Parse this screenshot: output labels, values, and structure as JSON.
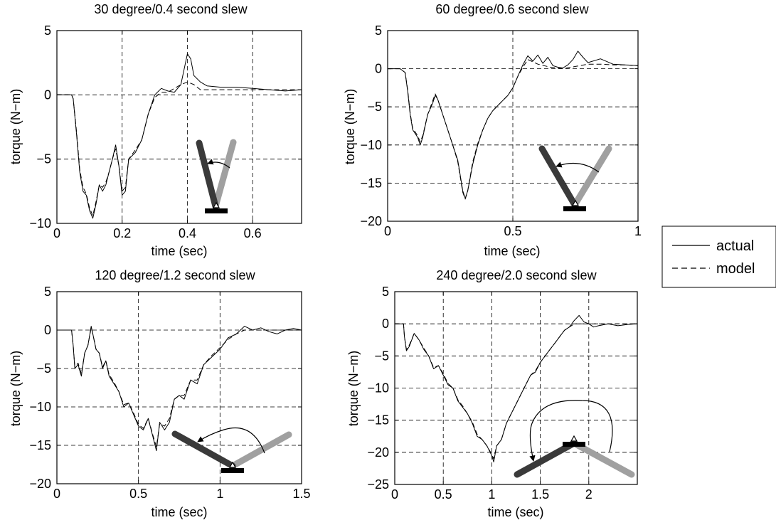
{
  "chart_data": [
    {
      "type": "line",
      "title": "30 degree/0.4 second slew",
      "xlabel": "time (sec)",
      "ylabel": "torque (N−m)",
      "xlim": [
        0,
        0.75
      ],
      "ylim": [
        -10,
        5
      ],
      "xticks": [
        0,
        0.2,
        0.4,
        0.6
      ],
      "xtick_labels": [
        "0",
        "0.2",
        "0.4",
        "0.6"
      ],
      "yticks": [
        -10,
        -5,
        0,
        5
      ],
      "ytick_labels": [
        "−10",
        "−5",
        "0",
        "5"
      ],
      "grid": true,
      "series": [
        {
          "name": "actual",
          "x": [
            0,
            0.045,
            0.05,
            0.06,
            0.07,
            0.08,
            0.09,
            0.1,
            0.11,
            0.12,
            0.13,
            0.14,
            0.15,
            0.16,
            0.17,
            0.18,
            0.19,
            0.2,
            0.21,
            0.22,
            0.24,
            0.26,
            0.28,
            0.3,
            0.32,
            0.34,
            0.36,
            0.38,
            0.39,
            0.4,
            0.41,
            0.42,
            0.44,
            0.46,
            0.5,
            0.55,
            0.6,
            0.65,
            0.7,
            0.75
          ],
          "y": [
            0,
            0,
            -0.3,
            -3,
            -6,
            -7.5,
            -7.8,
            -9,
            -9.6,
            -8.5,
            -7,
            -7.5,
            -7,
            -6,
            -5,
            -3.9,
            -5.5,
            -7.8,
            -7.5,
            -5,
            -4.5,
            -3.5,
            -1.5,
            0,
            0.5,
            0.3,
            0.2,
            0.8,
            2,
            3.2,
            2.8,
            1.5,
            1,
            0.7,
            0.6,
            0.6,
            0.5,
            0.4,
            0.3,
            0.4
          ]
        },
        {
          "name": "model",
          "x": [
            0,
            0.045,
            0.05,
            0.06,
            0.07,
            0.08,
            0.09,
            0.1,
            0.11,
            0.12,
            0.13,
            0.14,
            0.15,
            0.16,
            0.17,
            0.18,
            0.19,
            0.2,
            0.21,
            0.22,
            0.24,
            0.26,
            0.28,
            0.3,
            0.32,
            0.34,
            0.36,
            0.38,
            0.4,
            0.42,
            0.44,
            0.48,
            0.55,
            0.65,
            0.75
          ],
          "y": [
            0,
            0,
            -0.3,
            -2.8,
            -5.8,
            -7.2,
            -7.7,
            -8.8,
            -9.4,
            -8.3,
            -7,
            -7.2,
            -6.8,
            -6,
            -5,
            -4.2,
            -5.5,
            -7.5,
            -7.2,
            -5,
            -4.3,
            -3.5,
            -1.5,
            -0.2,
            0.2,
            0.2,
            0.5,
            0.8,
            1,
            0.8,
            0.4,
            0.4,
            0.4,
            0.4,
            0.4
          ]
        }
      ]
    },
    {
      "type": "line",
      "title": "60 degree/0.6 second slew",
      "xlabel": "time (sec)",
      "ylabel": "torque (N−m)",
      "xlim": [
        0,
        1
      ],
      "ylim": [
        -20,
        5
      ],
      "xticks": [
        0,
        0.5,
        1
      ],
      "xtick_labels": [
        "0",
        "0.5",
        "1"
      ],
      "yticks": [
        -20,
        -15,
        -10,
        -5,
        0,
        5
      ],
      "ytick_labels": [
        "−20",
        "−15",
        "−10",
        "−5",
        "0",
        "5"
      ],
      "grid": true,
      "series": [
        {
          "name": "actual",
          "x": [
            0,
            0.05,
            0.07,
            0.08,
            0.09,
            0.1,
            0.12,
            0.13,
            0.14,
            0.16,
            0.18,
            0.19,
            0.2,
            0.22,
            0.24,
            0.26,
            0.28,
            0.3,
            0.31,
            0.32,
            0.34,
            0.36,
            0.38,
            0.4,
            0.42,
            0.45,
            0.48,
            0.5,
            0.52,
            0.54,
            0.56,
            0.58,
            0.6,
            0.62,
            0.64,
            0.66,
            0.68,
            0.7,
            0.72,
            0.74,
            0.76,
            0.78,
            0.8,
            0.85,
            0.9,
            0.95,
            1.0
          ],
          "y": [
            0,
            0,
            -0.5,
            -3,
            -6,
            -8,
            -9,
            -10,
            -9,
            -6,
            -4.5,
            -3.5,
            -4,
            -6,
            -8,
            -10,
            -12,
            -16,
            -17,
            -16,
            -12.5,
            -10,
            -8,
            -6.5,
            -5.5,
            -4.5,
            -3.5,
            -2.5,
            -1,
            0.5,
            1.7,
            1,
            1.8,
            0.7,
            1.5,
            0.4,
            0.2,
            0.1,
            0.5,
            1.2,
            2.3,
            1.5,
            0.8,
            1.3,
            0.6,
            0.5,
            0.4
          ]
        },
        {
          "name": "model",
          "x": [
            0,
            0.05,
            0.07,
            0.08,
            0.09,
            0.1,
            0.12,
            0.13,
            0.14,
            0.16,
            0.18,
            0.19,
            0.2,
            0.22,
            0.24,
            0.26,
            0.28,
            0.3,
            0.31,
            0.32,
            0.34,
            0.36,
            0.38,
            0.4,
            0.42,
            0.45,
            0.48,
            0.5,
            0.52,
            0.54,
            0.56,
            0.6,
            0.65,
            0.7,
            0.75,
            0.8,
            0.85,
            0.9,
            0.95,
            1.0
          ],
          "y": [
            0,
            0,
            -0.5,
            -2.8,
            -5.8,
            -7.8,
            -8.8,
            -9.6,
            -8.8,
            -6,
            -4.2,
            -3.3,
            -4,
            -6,
            -8,
            -10,
            -12.2,
            -16.2,
            -17.1,
            -16,
            -12.2,
            -9.8,
            -8,
            -6.5,
            -5.5,
            -4.5,
            -3.5,
            -2.5,
            -1,
            0.2,
            1.2,
            0.6,
            0.2,
            0,
            0.3,
            0.6,
            0.6,
            0.5,
            0.5,
            0.4
          ]
        }
      ]
    },
    {
      "type": "line",
      "title": "120 degree/1.2 second slew",
      "xlabel": "time (sec)",
      "ylabel": "torque (N−m)",
      "xlim": [
        0,
        1.5
      ],
      "ylim": [
        -20,
        5
      ],
      "xticks": [
        0,
        0.5,
        1,
        1.5
      ],
      "xtick_labels": [
        "0",
        "0.5",
        "1",
        "1.5"
      ],
      "yticks": [
        -20,
        -15,
        -10,
        -5,
        0,
        5
      ],
      "ytick_labels": [
        "−20",
        "−15",
        "−10",
        "−5",
        "0",
        "5"
      ],
      "grid": true,
      "series": [
        {
          "name": "actual",
          "x": [
            0,
            0.09,
            0.1,
            0.11,
            0.13,
            0.15,
            0.17,
            0.19,
            0.21,
            0.22,
            0.24,
            0.26,
            0.28,
            0.3,
            0.32,
            0.35,
            0.38,
            0.41,
            0.44,
            0.47,
            0.5,
            0.53,
            0.56,
            0.59,
            0.61,
            0.63,
            0.66,
            0.69,
            0.72,
            0.75,
            0.78,
            0.82,
            0.86,
            0.9,
            0.95,
            1.0,
            1.05,
            1.1,
            1.15,
            1.2,
            1.25,
            1.3,
            1.35,
            1.4,
            1.45,
            1.5
          ],
          "y": [
            0,
            0,
            -2,
            -5,
            -4.5,
            -6,
            -3,
            -2,
            0.5,
            -0.5,
            -2.5,
            -3,
            -5,
            -4,
            -6,
            -7,
            -8,
            -10,
            -9.5,
            -11,
            -12.5,
            -13,
            -11.5,
            -14,
            -15.7,
            -12,
            -13,
            -12,
            -9,
            -8.5,
            -9,
            -6.5,
            -7,
            -4.5,
            -3.5,
            -2.5,
            -1,
            -0.5,
            0.5,
            0,
            0.3,
            -0.2,
            -0.5,
            0,
            0.2,
            0
          ]
        },
        {
          "name": "model",
          "x": [
            0,
            0.09,
            0.1,
            0.11,
            0.13,
            0.15,
            0.17,
            0.19,
            0.21,
            0.22,
            0.24,
            0.26,
            0.28,
            0.3,
            0.32,
            0.35,
            0.38,
            0.41,
            0.44,
            0.47,
            0.5,
            0.53,
            0.56,
            0.59,
            0.61,
            0.63,
            0.66,
            0.69,
            0.72,
            0.75,
            0.78,
            0.82,
            0.86,
            0.9,
            0.95,
            1.0,
            1.05,
            1.1,
            1.15,
            1.2,
            1.3,
            1.4,
            1.5
          ],
          "y": [
            0,
            0,
            -2,
            -4.8,
            -4.3,
            -5.7,
            -3,
            -2,
            0.3,
            -0.5,
            -2.5,
            -3,
            -4.8,
            -4,
            -5.8,
            -6.8,
            -8,
            -9.7,
            -9.5,
            -10.8,
            -12.3,
            -12.8,
            -11.5,
            -13.8,
            -15.2,
            -12.2,
            -12.5,
            -11.5,
            -9,
            -8.5,
            -8.5,
            -6.5,
            -6.5,
            -4.5,
            -3.3,
            -2.3,
            -1.2,
            -0.5,
            0,
            0,
            0,
            0,
            0
          ]
        }
      ]
    },
    {
      "type": "line",
      "title": "240 degree/2.0 second slew",
      "xlabel": "time (sec)",
      "ylabel": "torque (N−m)",
      "xlim": [
        0,
        2.5
      ],
      "ylim": [
        -25,
        5
      ],
      "xticks": [
        0,
        0.5,
        1,
        1.5,
        2
      ],
      "xtick_labels": [
        "0",
        "0.5",
        "1",
        "1.5",
        "2"
      ],
      "yticks": [
        -25,
        -20,
        -15,
        -10,
        -5,
        0,
        5
      ],
      "ytick_labels": [
        "−25",
        "−20",
        "−15",
        "−10",
        "−5",
        "0",
        "5"
      ],
      "grid": true,
      "series": [
        {
          "name": "actual",
          "x": [
            0,
            0.09,
            0.1,
            0.12,
            0.15,
            0.2,
            0.25,
            0.3,
            0.35,
            0.4,
            0.45,
            0.5,
            0.55,
            0.6,
            0.65,
            0.7,
            0.75,
            0.8,
            0.85,
            0.9,
            0.95,
            1.0,
            1.02,
            1.05,
            1.1,
            1.15,
            1.2,
            1.25,
            1.3,
            1.35,
            1.4,
            1.45,
            1.5,
            1.55,
            1.6,
            1.65,
            1.7,
            1.75,
            1.8,
            1.85,
            1.9,
            1.95,
            2.0,
            2.05,
            2.1,
            2.2,
            2.3,
            2.4,
            2.5
          ],
          "y": [
            0,
            0,
            -2,
            -4.2,
            -3.5,
            -1.5,
            -2.5,
            -4,
            -5,
            -7,
            -6.5,
            -8,
            -9.5,
            -10,
            -12,
            -13,
            -14,
            -15.5,
            -17.5,
            -18,
            -19,
            -20.5,
            -21.5,
            -19,
            -18,
            -15.5,
            -14,
            -12.5,
            -11,
            -9.5,
            -8,
            -7.5,
            -6,
            -5,
            -4,
            -3,
            -2,
            -1,
            -0.5,
            0.5,
            1.3,
            0.3,
            0,
            -0.5,
            -0.3,
            0,
            -0.3,
            -0.1,
            0
          ]
        },
        {
          "name": "model",
          "x": [
            0,
            0.09,
            0.1,
            0.12,
            0.15,
            0.2,
            0.25,
            0.3,
            0.35,
            0.4,
            0.45,
            0.5,
            0.55,
            0.6,
            0.65,
            0.7,
            0.75,
            0.8,
            0.85,
            0.9,
            0.95,
            1.0,
            1.02,
            1.05,
            1.1,
            1.15,
            1.2,
            1.25,
            1.3,
            1.35,
            1.4,
            1.45,
            1.5,
            1.55,
            1.6,
            1.65,
            1.7,
            1.75,
            1.8,
            1.85,
            1.9,
            2.0,
            2.1,
            2.2,
            2.3,
            2.4,
            2.5
          ],
          "y": [
            0,
            0,
            -2,
            -4,
            -3.3,
            -1.5,
            -2.5,
            -3.8,
            -5,
            -6.8,
            -6.5,
            -7.8,
            -9.3,
            -10,
            -11.8,
            -12.8,
            -14,
            -15.3,
            -17.2,
            -18,
            -19,
            -20.3,
            -21,
            -19,
            -18,
            -15.5,
            -14,
            -12.5,
            -11,
            -9.5,
            -8,
            -7.3,
            -6,
            -5,
            -4,
            -3,
            -2,
            -1,
            -0.5,
            0,
            0,
            0,
            0,
            0,
            0,
            0,
            0
          ]
        }
      ]
    }
  ],
  "legend": {
    "placement": "right",
    "entries": [
      {
        "label": "actual",
        "style": "solid"
      },
      {
        "label": "model",
        "style": "dashed"
      }
    ]
  },
  "colors": {
    "line": "#000000",
    "grid": "#000000",
    "arm_initial": "#a0a0a0",
    "arm_final": "#3a3a3a",
    "base": "#000000"
  },
  "insets": [
    {
      "icon": "slew-diagram-30-degree",
      "slew_deg": 30
    },
    {
      "icon": "slew-diagram-60-degree",
      "slew_deg": 60
    },
    {
      "icon": "slew-diagram-120-degree",
      "slew_deg": 120
    },
    {
      "icon": "slew-diagram-240-degree",
      "slew_deg": 240
    }
  ]
}
